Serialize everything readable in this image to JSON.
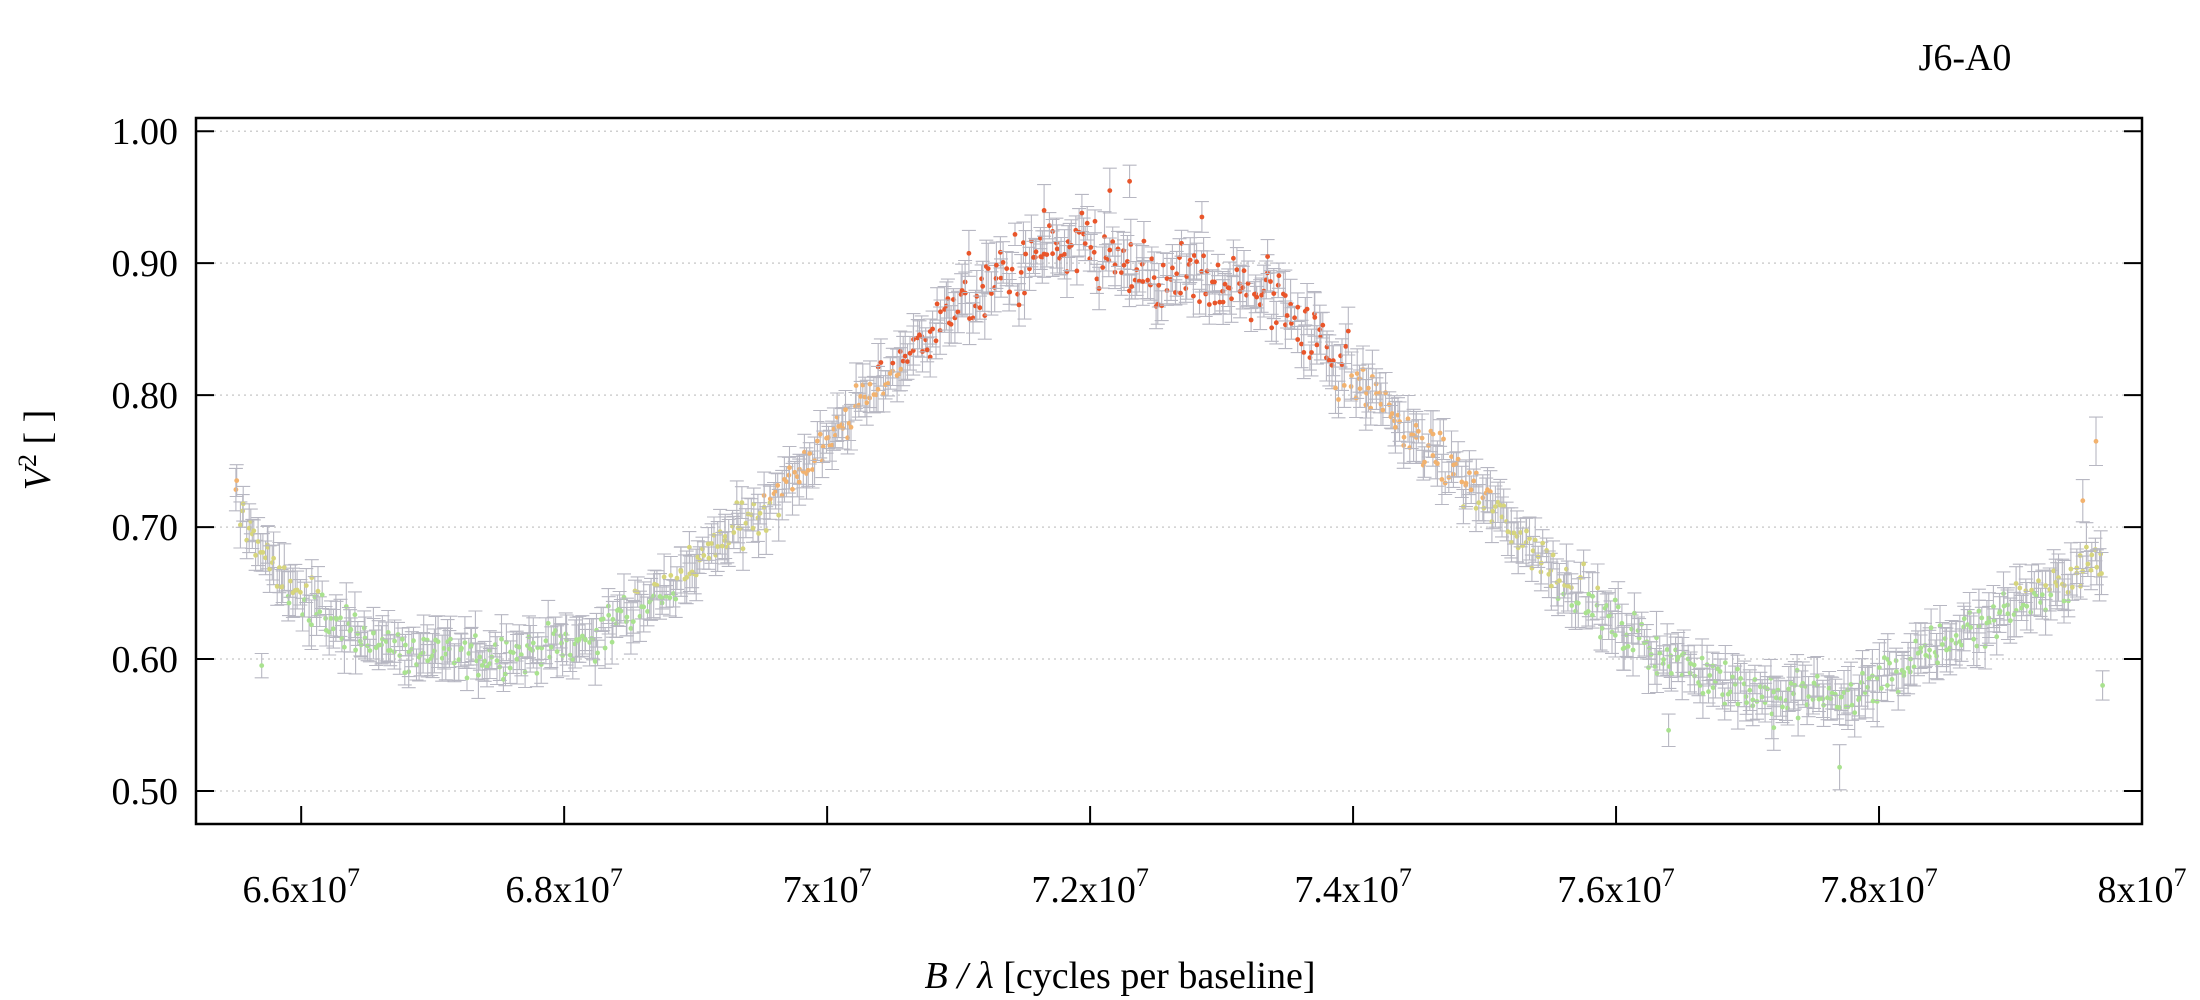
{
  "chart_data": {
    "type": "scatter",
    "title": "J6-A0",
    "xlabel_var": "B / λ",
    "xlabel_rest": " [cycles per baseline]",
    "ylabel_var": "V",
    "ylabel_sup": "2",
    "ylabel_rest": " [ ]",
    "xlim": [
      65200000,
      80000000
    ],
    "ylim": [
      0.475,
      1.01
    ],
    "grid": "horizontal dotted",
    "yticks": [
      {
        "value": 0.5,
        "label": "0.50"
      },
      {
        "value": 0.6,
        "label": "0.60"
      },
      {
        "value": 0.7,
        "label": "0.70"
      },
      {
        "value": 0.8,
        "label": "0.80"
      },
      {
        "value": 0.9,
        "label": "0.90"
      },
      {
        "value": 1.0,
        "label": "1.00"
      }
    ],
    "xticks": [
      {
        "value": 66000000,
        "mantissa": "6.6x10",
        "exp": "7"
      },
      {
        "value": 68000000,
        "mantissa": "6.8x10",
        "exp": "7"
      },
      {
        "value": 70000000,
        "mantissa": "7x10",
        "exp": "7"
      },
      {
        "value": 72000000,
        "mantissa": "7.2x10",
        "exp": "7"
      },
      {
        "value": 74000000,
        "mantissa": "7.4x10",
        "exp": "7"
      },
      {
        "value": 76000000,
        "mantissa": "7.6x10",
        "exp": "7"
      },
      {
        "value": 78000000,
        "mantissa": "7.8x10",
        "exp": "7"
      },
      {
        "value": 80000000,
        "mantissa": "8x10",
        "exp": "7"
      }
    ],
    "trend": {
      "x": [
        65500000,
        65800000,
        66200000,
        66800000,
        67500000,
        68200000,
        68800000,
        69400000,
        70000000,
        70500000,
        71000000,
        71500000,
        72000000,
        72500000,
        73000000,
        73500000,
        74000000,
        74500000,
        75000000,
        75500000,
        76000000,
        76600000,
        77200000,
        77800000,
        78300000,
        78800000,
        79300000,
        79700000
      ],
      "y": [
        0.72,
        0.665,
        0.63,
        0.605,
        0.603,
        0.615,
        0.655,
        0.705,
        0.765,
        0.82,
        0.87,
        0.9,
        0.91,
        0.885,
        0.885,
        0.87,
        0.815,
        0.765,
        0.72,
        0.67,
        0.625,
        0.59,
        0.572,
        0.572,
        0.6,
        0.63,
        0.655,
        0.675
      ]
    },
    "outliers": [
      {
        "x": 79650000,
        "y": 0.765
      },
      {
        "x": 79700000,
        "y": 0.58
      },
      {
        "x": 79550000,
        "y": 0.72
      },
      {
        "x": 65700000,
        "y": 0.595
      },
      {
        "x": 72300000,
        "y": 0.962
      },
      {
        "x": 72150000,
        "y": 0.955
      },
      {
        "x": 71650000,
        "y": 0.94
      },
      {
        "x": 72850000,
        "y": 0.935
      },
      {
        "x": 77200000,
        "y": 0.548
      },
      {
        "x": 77700000,
        "y": 0.518
      },
      {
        "x": 76400000,
        "y": 0.546
      },
      {
        "x": 73350000,
        "y": 0.905
      }
    ],
    "noise": 0.012,
    "n_points": 900,
    "colors": {
      "low": "#a9e28f",
      "mid_low": "#d6d57c",
      "mid": "#f2b26e",
      "high": "#e9552a",
      "errorbar": "#b7b7c2",
      "grid": "#cfcfcf"
    }
  }
}
